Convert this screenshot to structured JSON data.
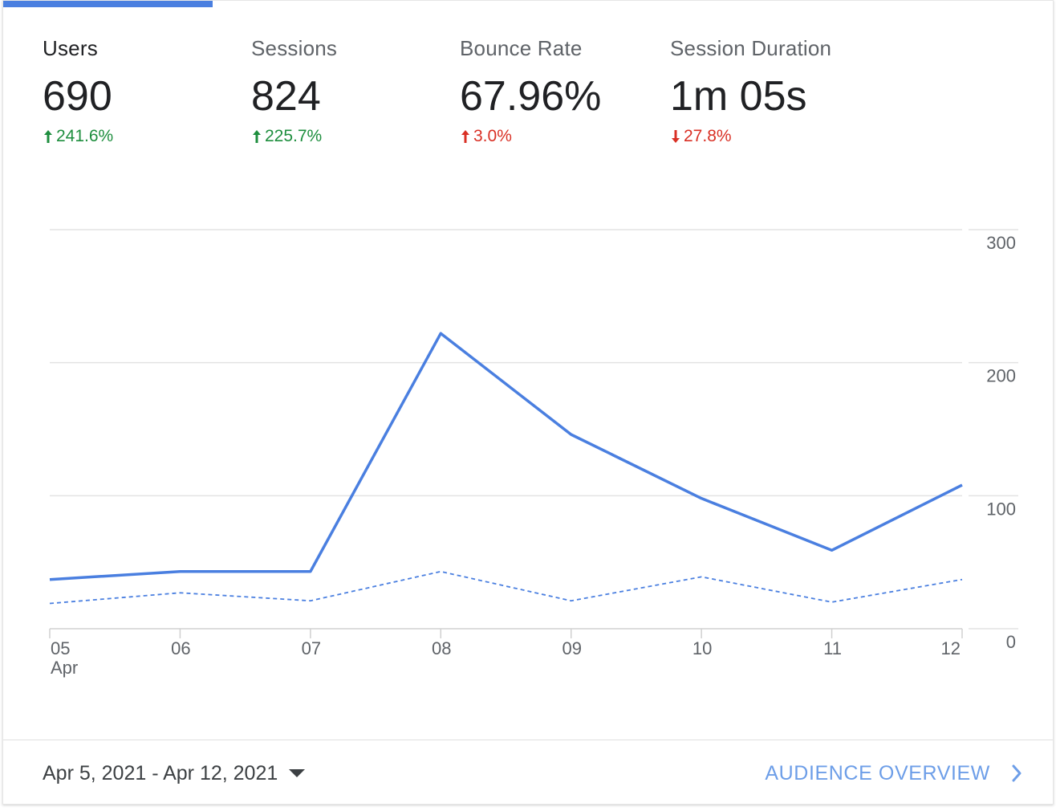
{
  "metrics": [
    {
      "label": "Users",
      "value": "690",
      "delta": "241.6%",
      "direction": "up",
      "sentiment": "good",
      "active": true
    },
    {
      "label": "Sessions",
      "value": "824",
      "delta": "225.7%",
      "direction": "up",
      "sentiment": "good",
      "active": false
    },
    {
      "label": "Bounce Rate",
      "value": "67.96%",
      "delta": "3.0%",
      "direction": "up",
      "sentiment": "bad",
      "active": false
    },
    {
      "label": "Session Duration",
      "value": "1m 05s",
      "delta": "27.8%",
      "direction": "down",
      "sentiment": "bad",
      "active": false
    }
  ],
  "chart_data": {
    "type": "line",
    "categories": [
      "05",
      "06",
      "07",
      "08",
      "09",
      "10",
      "11",
      "12"
    ],
    "x_sublabel": {
      "index": 0,
      "text": "Apr"
    },
    "series": [
      {
        "name": "current",
        "style": "solid",
        "color": "#4a7fe0",
        "values": [
          37,
          43,
          43,
          222,
          146,
          98,
          59,
          108
        ]
      },
      {
        "name": "previous",
        "style": "dashed",
        "color": "#4a7fe0",
        "values": [
          19,
          27,
          21,
          43,
          21,
          39,
          20,
          37
        ]
      }
    ],
    "y_ticks": [
      0,
      100,
      200,
      300
    ],
    "ylim": [
      0,
      300
    ],
    "grid": true
  },
  "footer": {
    "date_range": "Apr 5, 2021 - Apr 12, 2021",
    "link_label": "AUDIENCE OVERVIEW"
  }
}
